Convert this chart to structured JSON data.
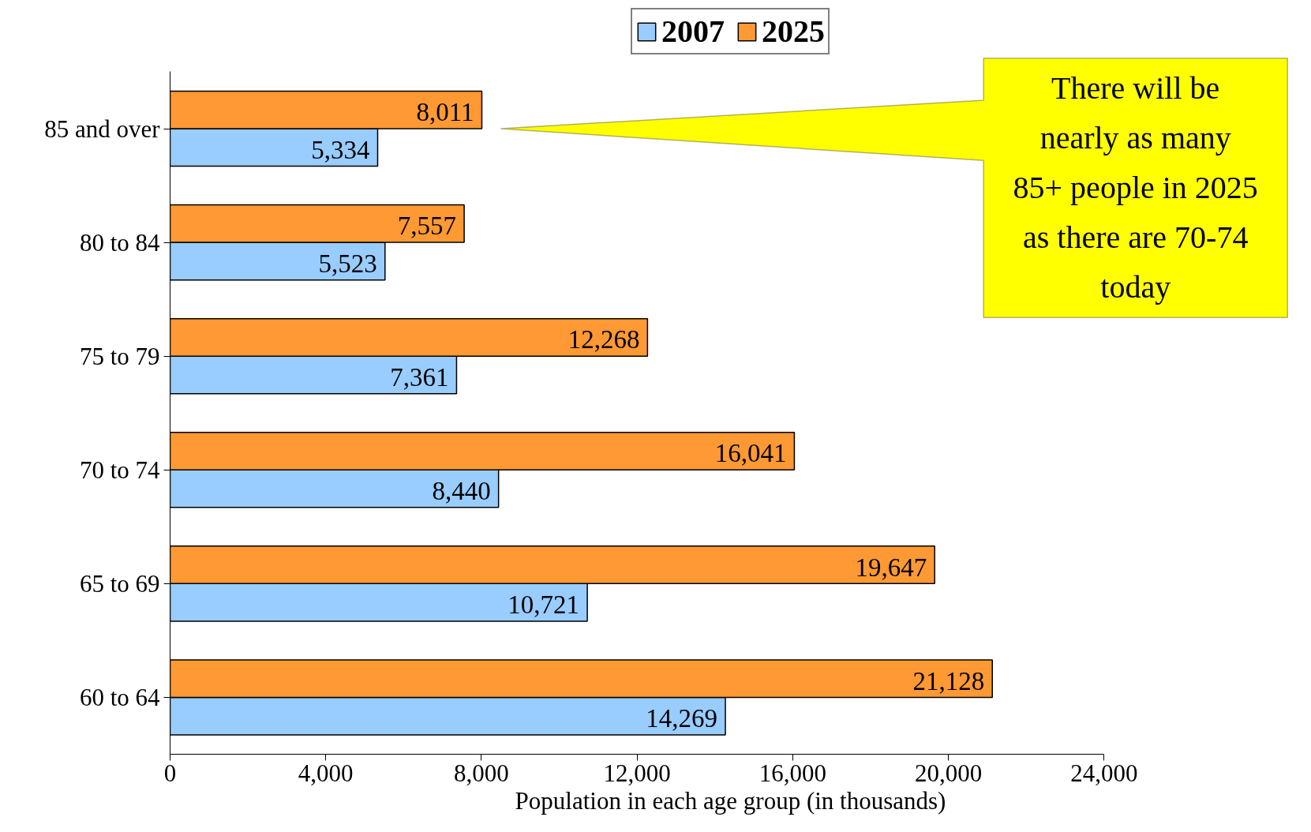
{
  "chart_data": {
    "type": "bar",
    "orientation": "horizontal",
    "categories": [
      "85 and over",
      "80 to 84",
      "75 to 79",
      "70 to 74",
      "65 to 69",
      "60 to 64"
    ],
    "series": [
      {
        "name": "2007",
        "color": "#99ccff",
        "values": [
          5334,
          5523,
          7361,
          8440,
          10721,
          14269
        ],
        "value_labels": [
          "5,334",
          "5,523",
          "7,361",
          "8,440",
          "10,721",
          "14,269"
        ]
      },
      {
        "name": "2025",
        "color": "#ff9933",
        "values": [
          8011,
          7557,
          12268,
          16041,
          19647,
          21128
        ],
        "value_labels": [
          "8,011",
          "7,557",
          "12,268",
          "16,041",
          "19,647",
          "21,128"
        ]
      }
    ],
    "xlabel": "Population in each age group (in thousands)",
    "xlim": [
      0,
      24000
    ],
    "xticks": [
      0,
      {
        "value": 4000,
        "label": "4,000"
      },
      {
        "value": 8000,
        "label": "8,000"
      },
      {
        "value": 12000,
        "label": "12,000"
      },
      {
        "value": 16000,
        "label": "16,000"
      },
      {
        "value": 20000,
        "label": "20,000"
      },
      {
        "value": 24000,
        "label": "24,000"
      }
    ],
    "grid": false,
    "legend": "top",
    "annotations": [
      "There will be\nnearly as many\n85+ people in 2025\nas there are 70-74\ntoday"
    ]
  }
}
